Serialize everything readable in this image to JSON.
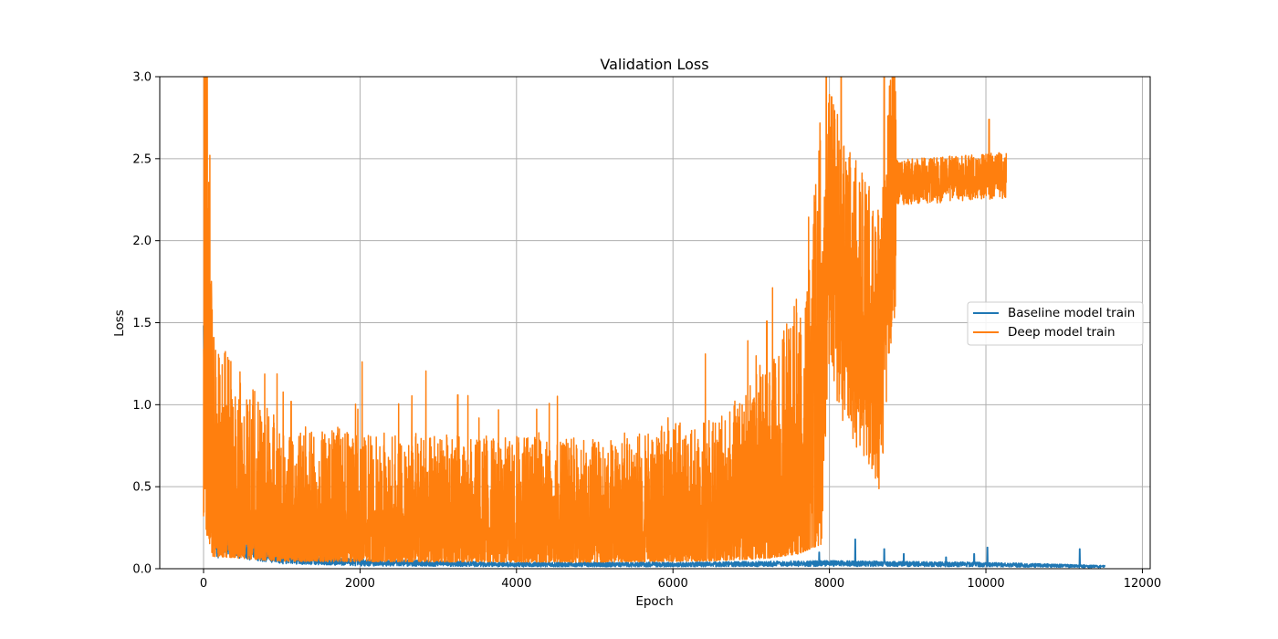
{
  "chart_data": {
    "type": "line",
    "title": "Validation Loss",
    "xlabel": "Epoch",
    "ylabel": "Loss",
    "xlim": [
      -560,
      12100
    ],
    "ylim": [
      0,
      3.0
    ],
    "x_ticks": [
      0,
      2000,
      4000,
      6000,
      8000,
      10000,
      12000
    ],
    "y_ticks": [
      0.0,
      0.5,
      1.0,
      1.5,
      2.0,
      2.5,
      3.0
    ],
    "x_tick_labels": [
      "0",
      "2000",
      "4000",
      "6000",
      "8000",
      "10000",
      "12000"
    ],
    "y_tick_labels": [
      "0.0",
      "0.5",
      "1.0",
      "1.5",
      "2.0",
      "2.5",
      "3.0"
    ],
    "grid": true,
    "legend_position": "center-right",
    "series": [
      {
        "name": "Baseline model train",
        "color": "#1f77b4",
        "x_range": [
          0,
          11520
        ],
        "description_points": [
          {
            "x": 0,
            "y": 1.38
          },
          {
            "x": 10,
            "y": 0.75
          },
          {
            "x": 50,
            "y": 0.45
          },
          {
            "x": 150,
            "y": 0.2
          },
          {
            "x": 500,
            "y": 0.1
          },
          {
            "x": 1000,
            "y": 0.05
          },
          {
            "x": 2000,
            "y": 0.03
          },
          {
            "x": 4000,
            "y": 0.02
          },
          {
            "x": 6000,
            "y": 0.02
          },
          {
            "x": 8000,
            "y": 0.025
          },
          {
            "x": 10000,
            "y": 0.02
          },
          {
            "x": 11520,
            "y": 0.01
          }
        ],
        "spikes": [
          {
            "x": 620,
            "y": 0.72
          },
          {
            "x": 8330,
            "y": 0.18
          },
          {
            "x": 7870,
            "y": 0.1
          },
          {
            "x": 8700,
            "y": 0.12
          },
          {
            "x": 9490,
            "y": 0.07
          },
          {
            "x": 10020,
            "y": 0.13
          },
          {
            "x": 11200,
            "y": 0.12
          },
          {
            "x": 9850,
            "y": 0.09
          },
          {
            "x": 8950,
            "y": 0.09
          }
        ]
      },
      {
        "name": "Deep model train",
        "color": "#ff7f0e",
        "x_range": [
          0,
          10260
        ],
        "description_points": [
          {
            "x": 0,
            "y": 1.15
          },
          {
            "x": 10,
            "y": 2.77
          },
          {
            "x": 30,
            "y": 1.5
          },
          {
            "x": 120,
            "y": 0.5
          },
          {
            "x": 1000,
            "y": 0.3
          },
          {
            "x": 3000,
            "y": 0.28
          },
          {
            "x": 5000,
            "y": 0.27
          },
          {
            "x": 6500,
            "y": 0.32
          },
          {
            "x": 7200,
            "y": 0.42
          },
          {
            "x": 7600,
            "y": 0.6
          },
          {
            "x": 7900,
            "y": 1.0
          },
          {
            "x": 8000,
            "y": 2.1
          },
          {
            "x": 8200,
            "y": 1.7
          },
          {
            "x": 8500,
            "y": 1.5
          },
          {
            "x": 8650,
            "y": 1.3
          },
          {
            "x": 8800,
            "y": 2.35
          },
          {
            "x": 10260,
            "y": 2.4
          }
        ],
        "spikes": [
          {
            "x": 10,
            "y": 2.77
          },
          {
            "x": 130,
            "y": 1.41
          },
          {
            "x": 1120,
            "y": 1.02
          },
          {
            "x": 3250,
            "y": 1.06
          },
          {
            "x": 7200,
            "y": 1.51
          },
          {
            "x": 7800,
            "y": 2.1
          },
          {
            "x": 7960,
            "y": 3.0
          },
          {
            "x": 8150,
            "y": 3.0
          },
          {
            "x": 8700,
            "y": 3.0
          },
          {
            "x": 8570,
            "y": 0.7
          },
          {
            "x": 8470,
            "y": 0.88
          },
          {
            "x": 10040,
            "y": 2.74
          }
        ]
      }
    ]
  }
}
